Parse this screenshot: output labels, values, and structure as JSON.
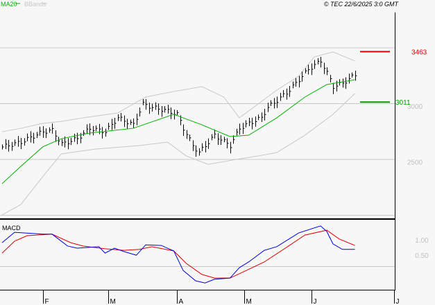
{
  "header": {
    "legend_ma": "MA20",
    "legend_bb": "BBands",
    "copyright": "© TEC 22/6/2025 3:0 GMT"
  },
  "colors": {
    "ma": "#00b000",
    "bb": "#c8c8c8",
    "macd": "#0000dd",
    "signal": "#dd0000",
    "resistance": "#dd0000",
    "support": "#009900"
  },
  "chart_data": [
    {
      "type": "line",
      "title": "Price",
      "yticks": [
        "3000",
        "2500"
      ],
      "ytick_values": [
        3000,
        2500
      ],
      "gridlines": [
        3500,
        3000,
        2500,
        2000
      ],
      "xticks": [
        {
          "label": "F",
          "day": 13
        },
        {
          "label": "M",
          "day": 34
        },
        {
          "label": "A",
          "day": 56
        },
        {
          "label": "M",
          "day": 77.5
        },
        {
          "label": "J",
          "day": 99
        },
        {
          "label": "J",
          "day": 125.5
        }
      ],
      "resistance": {
        "label": "3463",
        "value": 3463
      },
      "support": {
        "label": "3011",
        "value": 3011
      },
      "close": [
        [
          0,
          2609
        ],
        [
          6,
          2652
        ],
        [
          13,
          2745
        ],
        [
          16,
          2758
        ],
        [
          19,
          2634
        ],
        [
          24,
          2683
        ],
        [
          28,
          2776
        ],
        [
          33,
          2745
        ],
        [
          37,
          2870
        ],
        [
          42,
          2807
        ],
        [
          45,
          2994
        ],
        [
          48,
          2963
        ],
        [
          53,
          2932
        ],
        [
          56,
          2901
        ],
        [
          58,
          2776
        ],
        [
          61,
          2621
        ],
        [
          63,
          2559
        ],
        [
          65,
          2621
        ],
        [
          68,
          2714
        ],
        [
          73,
          2621
        ],
        [
          76,
          2776
        ],
        [
          79,
          2820
        ],
        [
          83,
          2870
        ],
        [
          85,
          2963
        ],
        [
          88,
          3025
        ],
        [
          92,
          3118
        ],
        [
          95,
          3211
        ],
        [
          98,
          3304
        ],
        [
          102,
          3379
        ],
        [
          104,
          3273
        ],
        [
          106,
          3149
        ],
        [
          109,
          3180
        ],
        [
          113,
          3255
        ]
      ],
      "ma20": [
        [
          0,
          2280
        ],
        [
          6,
          2435
        ],
        [
          13,
          2609
        ],
        [
          19,
          2683
        ],
        [
          28,
          2733
        ],
        [
          42,
          2776
        ],
        [
          55,
          2901
        ],
        [
          64,
          2807
        ],
        [
          73,
          2702
        ],
        [
          79,
          2714
        ],
        [
          88,
          2870
        ],
        [
          97,
          3056
        ],
        [
          104,
          3168
        ],
        [
          113,
          3211
        ]
      ],
      "bb_upper": [
        [
          0,
          2745
        ],
        [
          6,
          2776
        ],
        [
          13,
          2820
        ],
        [
          19,
          2838
        ],
        [
          26,
          2870
        ],
        [
          37,
          2913
        ],
        [
          46,
          3056
        ],
        [
          55,
          3106
        ],
        [
          64,
          3149
        ],
        [
          71,
          3056
        ],
        [
          76,
          2870
        ],
        [
          82,
          2994
        ],
        [
          88,
          3118
        ],
        [
          95,
          3242
        ],
        [
          100,
          3416
        ],
        [
          106,
          3460
        ],
        [
          113,
          3379
        ]
      ],
      "bb_lower": [
        [
          0,
          2000
        ],
        [
          6,
          2093
        ],
        [
          13,
          2342
        ],
        [
          19,
          2547
        ],
        [
          30,
          2590
        ],
        [
          44,
          2621
        ],
        [
          53,
          2652
        ],
        [
          59,
          2528
        ],
        [
          66,
          2453
        ],
        [
          75,
          2497
        ],
        [
          82,
          2528
        ],
        [
          88,
          2559
        ],
        [
          97,
          2714
        ],
        [
          106,
          2901
        ],
        [
          113,
          3087
        ]
      ]
    },
    {
      "type": "line",
      "title": "MACD",
      "yticks": [
        "1.00",
        "0.50"
      ],
      "ytick_values": [
        1.0,
        0.5
      ],
      "macd": [
        [
          0,
          0.77
        ],
        [
          4,
          1.11
        ],
        [
          13,
          1.05
        ],
        [
          16,
          1.05
        ],
        [
          21,
          0.66
        ],
        [
          24,
          0.59
        ],
        [
          31,
          0.64
        ],
        [
          33,
          0.43
        ],
        [
          36,
          0.59
        ],
        [
          39,
          0.48
        ],
        [
          43,
          0.36
        ],
        [
          46,
          0.7
        ],
        [
          51,
          0.68
        ],
        [
          55,
          0.5
        ],
        [
          58,
          -0.14
        ],
        [
          62,
          -0.48
        ],
        [
          65,
          -0.55
        ],
        [
          68,
          -0.43
        ],
        [
          73,
          -0.39
        ],
        [
          76,
          -0.05
        ],
        [
          79,
          0.14
        ],
        [
          84,
          0.52
        ],
        [
          88,
          0.64
        ],
        [
          95,
          1.09
        ],
        [
          102,
          1.32
        ],
        [
          104,
          1.14
        ],
        [
          106,
          0.73
        ],
        [
          109,
          0.55
        ],
        [
          113,
          0.55
        ]
      ],
      "signal": [
        [
          0,
          0.43
        ],
        [
          4,
          0.82
        ],
        [
          8,
          1.0
        ],
        [
          16,
          1.05
        ],
        [
          22,
          0.77
        ],
        [
          26,
          0.66
        ],
        [
          33,
          0.57
        ],
        [
          39,
          0.52
        ],
        [
          44,
          0.55
        ],
        [
          48,
          0.64
        ],
        [
          55,
          0.5
        ],
        [
          59,
          0.09
        ],
        [
          64,
          -0.27
        ],
        [
          68,
          -0.39
        ],
        [
          73,
          -0.39
        ],
        [
          77,
          -0.2
        ],
        [
          84,
          0.14
        ],
        [
          91,
          0.61
        ],
        [
          97,
          1.02
        ],
        [
          104,
          1.18
        ],
        [
          108,
          0.89
        ],
        [
          113,
          0.68
        ]
      ]
    }
  ]
}
